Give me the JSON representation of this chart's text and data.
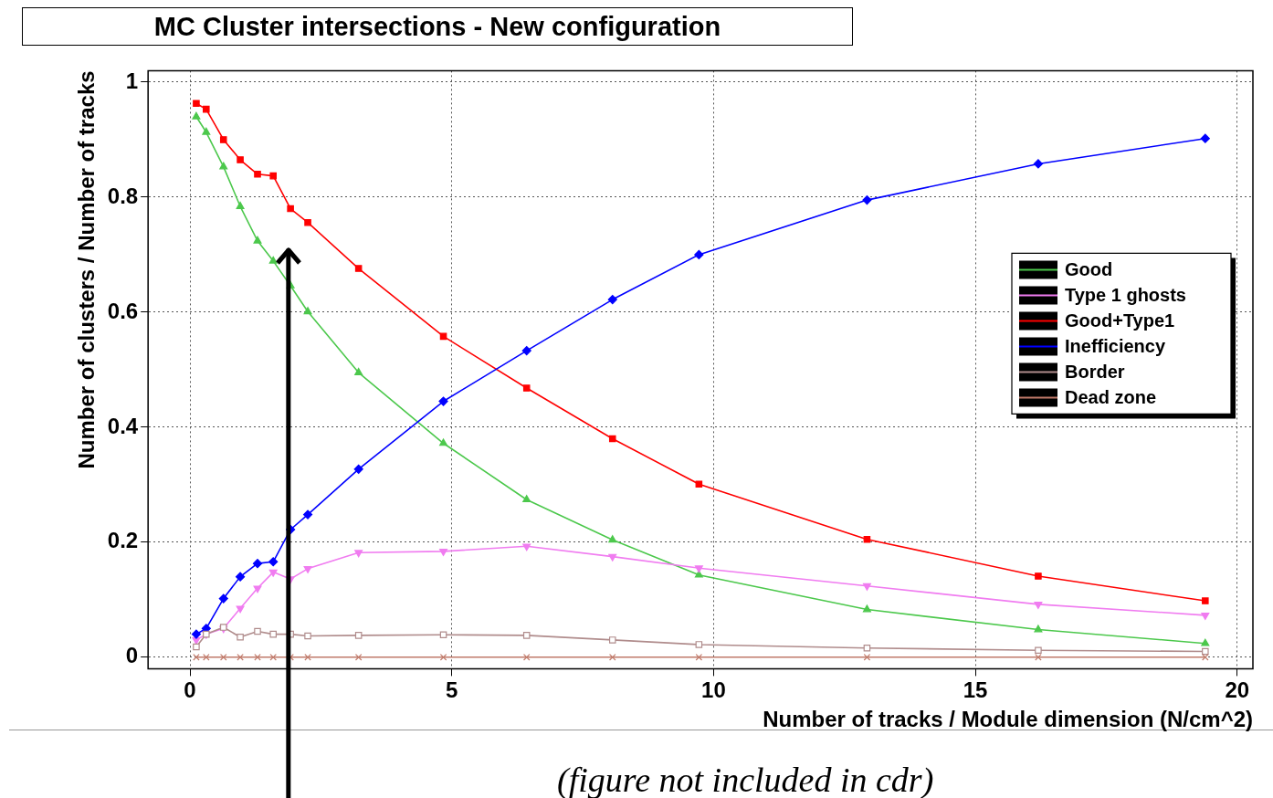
{
  "chart_data": {
    "type": "line",
    "title": "MC Cluster intersections - New configuration",
    "xlabel": "Number of tracks / Module dimension (N/cm^2)",
    "ylabel": "Number of clusters / Number of tracks",
    "x": [
      0.12,
      0.31,
      0.64,
      0.96,
      1.29,
      1.59,
      1.92,
      2.25,
      3.22,
      4.84,
      6.43,
      8.07,
      9.72,
      12.93,
      16.2,
      19.39
    ],
    "series": [
      {
        "name": "Good",
        "color": "#4cc84c",
        "marker": "triangle",
        "values": [
          0.94,
          0.913,
          0.853,
          0.784,
          0.724,
          0.689,
          0.646,
          0.601,
          0.495,
          0.372,
          0.274,
          0.204,
          0.143,
          0.083,
          0.048,
          0.024
        ]
      },
      {
        "name": "Type 1 ghosts",
        "color": "#f07cf0",
        "marker": "triangle-down",
        "values": [
          0.03,
          0.04,
          0.05,
          0.085,
          0.12,
          0.148,
          0.136,
          0.154,
          0.182,
          0.184,
          0.193,
          0.175,
          0.155,
          0.124,
          0.092,
          0.073
        ]
      },
      {
        "name": "Good+Type1",
        "color": "#ff0000",
        "marker": "square",
        "values": [
          0.963,
          0.953,
          0.9,
          0.865,
          0.84,
          0.837,
          0.78,
          0.756,
          0.676,
          0.558,
          0.468,
          0.38,
          0.301,
          0.205,
          0.141,
          0.098
        ]
      },
      {
        "name": "Inefficiency",
        "color": "#0000ff",
        "marker": "diamond",
        "values": [
          0.04,
          0.05,
          0.102,
          0.14,
          0.163,
          0.166,
          0.222,
          0.248,
          0.327,
          0.445,
          0.533,
          0.622,
          0.7,
          0.795,
          0.858,
          0.902
        ]
      },
      {
        "name": "Border",
        "color": "#b08c8c",
        "marker": "square-open",
        "values": [
          0.018,
          0.04,
          0.052,
          0.035,
          0.045,
          0.04,
          0.04,
          0.037,
          0.038,
          0.039,
          0.038,
          0.03,
          0.022,
          0.016,
          0.012,
          0.01
        ]
      },
      {
        "name": "Dead zone",
        "color": "#c07a6a",
        "marker": "cross",
        "values": [
          0,
          0,
          0,
          0,
          0,
          0,
          0,
          0,
          0,
          0,
          0,
          0,
          0,
          0,
          0,
          0
        ]
      }
    ],
    "xlim": [
      -0.8,
      20.3
    ],
    "xticks": [
      0,
      5,
      10,
      15,
      20
    ],
    "ylim": [
      -0.02,
      1.02
    ],
    "yticks": [
      0,
      0.2,
      0.4,
      0.6,
      0.8,
      1
    ],
    "grid": true,
    "legend": "right",
    "ref_lines": [
      {
        "axis": "x",
        "value": 1.88,
        "color": "#000000"
      }
    ],
    "annotations": [
      "(figure not included in cdr)"
    ]
  }
}
